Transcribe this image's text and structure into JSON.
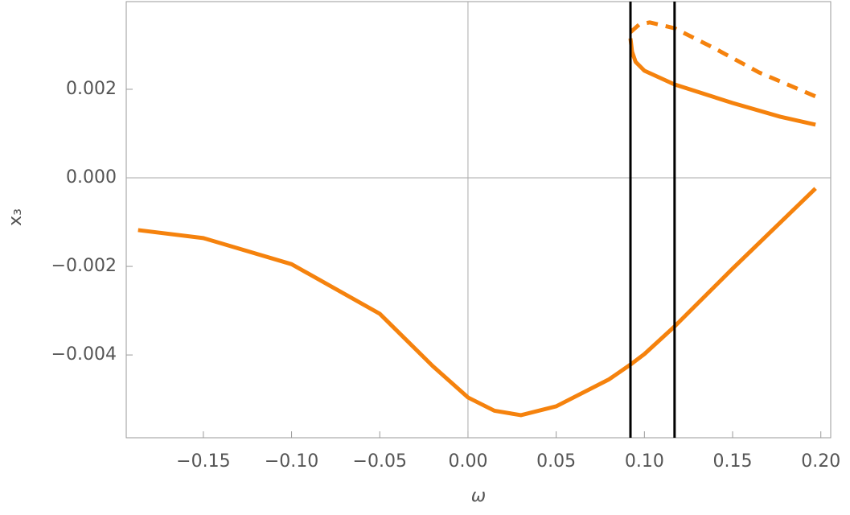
{
  "chart_data": {
    "type": "line",
    "xlabel": "ω",
    "ylabel": "x₃",
    "xlim": [
      -0.1937,
      0.2056
    ],
    "ylim": [
      -0.00587,
      0.00398
    ],
    "xticks": [
      {
        "value": -0.15,
        "label": "−0.15"
      },
      {
        "value": -0.1,
        "label": "−0.10"
      },
      {
        "value": -0.05,
        "label": "−0.05"
      },
      {
        "value": 0,
        "label": "0.00"
      },
      {
        "value": 0.05,
        "label": "0.05"
      },
      {
        "value": 0.1,
        "label": "0.10"
      },
      {
        "value": 0.15,
        "label": "0.15"
      },
      {
        "value": 0.2,
        "label": "0.20"
      }
    ],
    "yticks": [
      {
        "value": -0.004,
        "label": "−0.004"
      },
      {
        "value": -0.002,
        "label": "−0.002"
      },
      {
        "value": 0,
        "label": "0.000"
      },
      {
        "value": 0.002,
        "label": "0.002"
      }
    ],
    "vlines": [
      0.0921,
      0.1171
    ],
    "series": [
      {
        "color": "#f5820d",
        "dashed": false,
        "x": [
          -0.187,
          -0.15,
          -0.1,
          -0.05,
          -0.02,
          0,
          0.015,
          0.03,
          0.05,
          0.08,
          0.092,
          0.1,
          0.117,
          0.15,
          0.197
        ],
        "values": [
          -0.00118,
          -0.00136,
          -0.00195,
          -0.00307,
          -0.00425,
          -0.00496,
          -0.00526,
          -0.00536,
          -0.00516,
          -0.00455,
          -0.00422,
          -0.00398,
          -0.00336,
          -0.00205,
          -0.00024
        ]
      },
      {
        "color": "#f5820d",
        "dashed": false,
        "x": [
          0.0921,
          0.093,
          0.095,
          0.1,
          0.117,
          0.15,
          0.177,
          0.197
        ],
        "values": [
          0.00315,
          0.00285,
          0.00262,
          0.00242,
          0.00211,
          0.00169,
          0.00138,
          0.0012
        ]
      },
      {
        "color": "#f5820d",
        "dashed": true,
        "x": [
          0.0921,
          0.097,
          0.103,
          0.117,
          0.14,
          0.165,
          0.197
        ],
        "values": [
          0.00329,
          0.00346,
          0.00351,
          0.00338,
          0.00292,
          0.00238,
          0.00184
        ]
      }
    ]
  }
}
